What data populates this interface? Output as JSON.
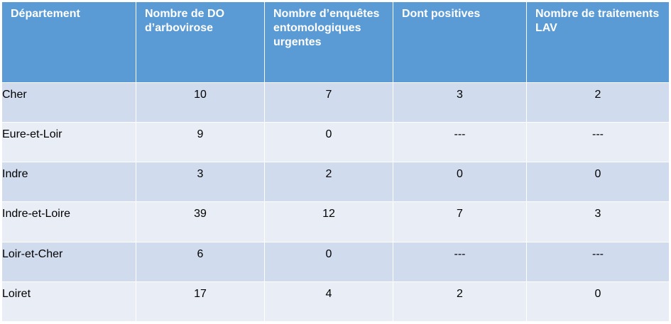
{
  "table": {
    "headers": [
      "Département",
      "Nombre de DO d’arbovirose",
      "Nombre d’enquêtes entomologiques urgentes",
      "Dont positives",
      "Nombre de traitements LAV"
    ],
    "rows": [
      {
        "departement": "Cher",
        "do": "10",
        "enquetes": "7",
        "positives": "3",
        "traitements": "2"
      },
      {
        "departement": "Eure-et-Loir",
        "do": "9",
        "enquetes": "0",
        "positives": "---",
        "traitements": "---"
      },
      {
        "departement": "Indre",
        "do": "3",
        "enquetes": "2",
        "positives": "0",
        "traitements": "0"
      },
      {
        "departement": "Indre-et-Loire",
        "do": "39",
        "enquetes": "12",
        "positives": "7",
        "traitements": "3"
      },
      {
        "departement": "Loir-et-Cher",
        "do": "6",
        "enquetes": "0",
        "positives": "---",
        "traitements": "---"
      },
      {
        "departement": "Loiret",
        "do": "17",
        "enquetes": "4",
        "positives": "2",
        "traitements": "0"
      }
    ]
  },
  "colors": {
    "header_bg": "#5b9bd5",
    "row_dark": "#d0dbee",
    "row_light": "#e9edf6"
  }
}
